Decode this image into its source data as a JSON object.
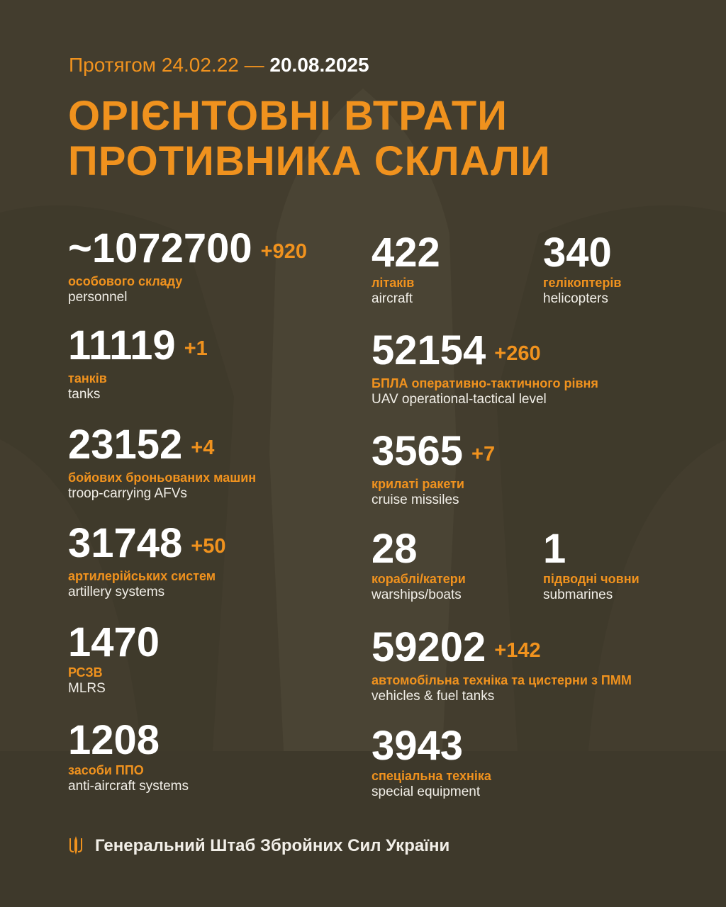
{
  "header": {
    "period_prefix": "Протягом 24.02.22 —",
    "period_end": "20.08.2025",
    "title_line1": "ОРІЄНТОВНІ ВТРАТИ",
    "title_line2": "ПРОТИВНИКА СКЛАЛИ"
  },
  "colors": {
    "background": "#433d2e",
    "accent": "#f0921e",
    "text": "#ffffff"
  },
  "stats": {
    "personnel": {
      "value": "~1072700",
      "delta": "+920",
      "ua": "особового складу",
      "en": "personnel"
    },
    "tanks": {
      "value": "11119",
      "delta": "+1",
      "ua": "танків",
      "en": "tanks"
    },
    "afv": {
      "value": "23152",
      "delta": "+4",
      "ua": "бойових броньованих машин",
      "en": "troop-carrying AFVs"
    },
    "artillery": {
      "value": "31748",
      "delta": "+50",
      "ua": "артилерійських систем",
      "en": "artillery systems"
    },
    "mlrs": {
      "value": "1470",
      "ua": "РСЗВ",
      "en": "MLRS"
    },
    "aa": {
      "value": "1208",
      "ua": "засоби ППО",
      "en": "anti-aircraft systems"
    },
    "aircraft": {
      "value": "422",
      "ua": "літаків",
      "en": "aircraft"
    },
    "helicopters": {
      "value": "340",
      "ua": "гелікоптерів",
      "en": "helicopters"
    },
    "uav": {
      "value": "52154",
      "delta": "+260",
      "ua": "БПЛА оперативно-тактичного рівня",
      "en": "UAV operational-tactical level"
    },
    "cruise": {
      "value": "3565",
      "delta": "+7",
      "ua": "крилаті ракети",
      "en": "cruise missiles"
    },
    "ships": {
      "value": "28",
      "ua": "кораблі/катери",
      "en": "warships/boats"
    },
    "submarines": {
      "value": "1",
      "ua": "підводні човни",
      "en": "submarines"
    },
    "vehicles": {
      "value": "59202",
      "delta": "+142",
      "ua": "автомобільна техніка та цистерни з ПММ",
      "en": "vehicles & fuel tanks"
    },
    "special": {
      "value": "3943",
      "ua": "спеціальна техніка",
      "en": "special equipment"
    }
  },
  "footer": {
    "icon": "trident-icon",
    "text": "Генеральний Штаб Збройних Сил України"
  }
}
